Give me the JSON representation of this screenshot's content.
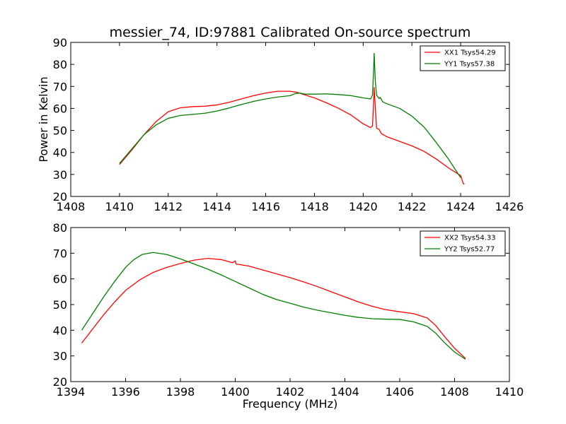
{
  "colors": {
    "red": "#ff0000",
    "green": "#007f00"
  },
  "chart_data": [
    {
      "type": "line",
      "title": "messier_74, ID:97881 Calibrated On-source spectrum",
      "xlabel": "",
      "ylabel": "Power in Kelvin",
      "xlim": [
        1408,
        1426
      ],
      "ylim": [
        20,
        90
      ],
      "xticks": [
        1408,
        1410,
        1412,
        1414,
        1416,
        1418,
        1420,
        1422,
        1424,
        1426
      ],
      "yticks": [
        20,
        30,
        40,
        50,
        60,
        70,
        80,
        90
      ],
      "grid": false,
      "legend_position": "top-right",
      "series": [
        {
          "name": "XX1 Tsys54.29",
          "color": "red",
          "points": [
            [
              1410,
              34.5
            ],
            [
              1410.5,
              41
            ],
            [
              1411,
              48
            ],
            [
              1411.5,
              54
            ],
            [
              1412,
              58.5
            ],
            [
              1412.5,
              60.3
            ],
            [
              1413,
              60.8
            ],
            [
              1413.5,
              61
            ],
            [
              1414,
              61.6
            ],
            [
              1414.5,
              62.8
            ],
            [
              1415,
              64.3
            ],
            [
              1415.5,
              65.8
            ],
            [
              1416,
              67
            ],
            [
              1416.5,
              67.8
            ],
            [
              1417,
              67.8
            ],
            [
              1417.3,
              67.3
            ],
            [
              1417.5,
              66.5
            ],
            [
              1418,
              64.8
            ],
            [
              1418.5,
              62.5
            ],
            [
              1419,
              60
            ],
            [
              1419.5,
              57
            ],
            [
              1420,
              53
            ],
            [
              1420.3,
              51.3
            ],
            [
              1420.38,
              52
            ],
            [
              1420.42,
              60
            ],
            [
              1420.45,
              69.5
            ],
            [
              1420.5,
              60
            ],
            [
              1420.55,
              51
            ],
            [
              1420.65,
              50.5
            ],
            [
              1420.75,
              48.5
            ],
            [
              1421,
              47
            ],
            [
              1421.5,
              45
            ],
            [
              1422,
              43
            ],
            [
              1422.5,
              40.5
            ],
            [
              1423,
              37
            ],
            [
              1423.5,
              33
            ],
            [
              1424,
              29.5
            ],
            [
              1424.1,
              26
            ],
            [
              1424.15,
              25.5
            ]
          ]
        },
        {
          "name": "YY1 Tsys57.38",
          "color": "green",
          "points": [
            [
              1410,
              35
            ],
            [
              1410.5,
              41.5
            ],
            [
              1411,
              48
            ],
            [
              1411.5,
              52.5
            ],
            [
              1412,
              55.5
            ],
            [
              1412.5,
              56.8
            ],
            [
              1413,
              57.3
            ],
            [
              1413.5,
              57.8
            ],
            [
              1414,
              58.8
            ],
            [
              1414.5,
              60.2
            ],
            [
              1415,
              61.8
            ],
            [
              1415.5,
              63.2
            ],
            [
              1416,
              64.3
            ],
            [
              1416.5,
              65.2
            ],
            [
              1417,
              65.8
            ],
            [
              1417.2,
              66.7
            ],
            [
              1417.4,
              67
            ],
            [
              1417.6,
              66.5
            ],
            [
              1418,
              66.5
            ],
            [
              1418.5,
              66.6
            ],
            [
              1419,
              66.3
            ],
            [
              1419.5,
              65.8
            ],
            [
              1420,
              64.8
            ],
            [
              1420.3,
              64.3
            ],
            [
              1420.38,
              66
            ],
            [
              1420.42,
              75
            ],
            [
              1420.45,
              85
            ],
            [
              1420.5,
              72
            ],
            [
              1420.55,
              66
            ],
            [
              1420.65,
              64.5
            ],
            [
              1420.7,
              65
            ],
            [
              1420.8,
              63
            ],
            [
              1421,
              62
            ],
            [
              1421.5,
              60
            ],
            [
              1422,
              56.5
            ],
            [
              1422.5,
              51.5
            ],
            [
              1423,
              44.5
            ],
            [
              1423.5,
              37
            ],
            [
              1424,
              28.5
            ]
          ]
        }
      ]
    },
    {
      "type": "line",
      "title": "",
      "xlabel": "Frequency (MHz)",
      "ylabel": "",
      "xlim": [
        1394,
        1410
      ],
      "ylim": [
        20,
        80
      ],
      "xticks": [
        1394,
        1396,
        1398,
        1400,
        1402,
        1404,
        1406,
        1408,
        1410
      ],
      "yticks": [
        20,
        30,
        40,
        50,
        60,
        70,
        80
      ],
      "grid": false,
      "legend_position": "top-right",
      "series": [
        {
          "name": "XX2 Tsys54.33",
          "color": "red",
          "points": [
            [
              1394.4,
              35
            ],
            [
              1394.8,
              40.5
            ],
            [
              1395.2,
              46
            ],
            [
              1395.6,
              51
            ],
            [
              1396,
              55.5
            ],
            [
              1396.5,
              59.5
            ],
            [
              1397,
              62.5
            ],
            [
              1397.5,
              64.5
            ],
            [
              1398,
              66
            ],
            [
              1398.5,
              67.3
            ],
            [
              1399,
              68
            ],
            [
              1399.5,
              67.5
            ],
            [
              1399.9,
              66.3
            ],
            [
              1400,
              67
            ],
            [
              1400.03,
              65.8
            ],
            [
              1400.5,
              65
            ],
            [
              1401,
              63.5
            ],
            [
              1401.5,
              62
            ],
            [
              1402,
              60.5
            ],
            [
              1402.5,
              58.8
            ],
            [
              1403,
              57
            ],
            [
              1403.5,
              55
            ],
            [
              1404,
              53
            ],
            [
              1404.5,
              51
            ],
            [
              1405,
              49.3
            ],
            [
              1405.5,
              48
            ],
            [
              1406,
              47.2
            ],
            [
              1406.5,
              46.5
            ],
            [
              1407,
              44.8
            ],
            [
              1407.3,
              42
            ],
            [
              1407.6,
              38
            ],
            [
              1408,
              33
            ],
            [
              1408.4,
              29
            ]
          ]
        },
        {
          "name": "YY2 Tsys52.77",
          "color": "green",
          "points": [
            [
              1394.4,
              40
            ],
            [
              1394.8,
              46.5
            ],
            [
              1395.2,
              53
            ],
            [
              1395.6,
              59
            ],
            [
              1396,
              64.5
            ],
            [
              1396.3,
              67.5
            ],
            [
              1396.6,
              69.5
            ],
            [
              1397,
              70.3
            ],
            [
              1397.5,
              69.5
            ],
            [
              1398,
              67.8
            ],
            [
              1398.5,
              65.8
            ],
            [
              1399,
              63.8
            ],
            [
              1399.5,
              61.5
            ],
            [
              1400,
              59
            ],
            [
              1400.5,
              56.5
            ],
            [
              1401,
              54
            ],
            [
              1401.5,
              52
            ],
            [
              1402,
              50.5
            ],
            [
              1402.5,
              49
            ],
            [
              1403,
              47.8
            ],
            [
              1403.5,
              46.8
            ],
            [
              1404,
              45.8
            ],
            [
              1404.5,
              45
            ],
            [
              1405,
              44.5
            ],
            [
              1405.5,
              44.3
            ],
            [
              1406,
              44.2
            ],
            [
              1406.5,
              43.3
            ],
            [
              1407,
              41.5
            ],
            [
              1407.3,
              39
            ],
            [
              1407.6,
              35.5
            ],
            [
              1408,
              31.5
            ],
            [
              1408.4,
              28.7
            ]
          ]
        }
      ]
    }
  ]
}
